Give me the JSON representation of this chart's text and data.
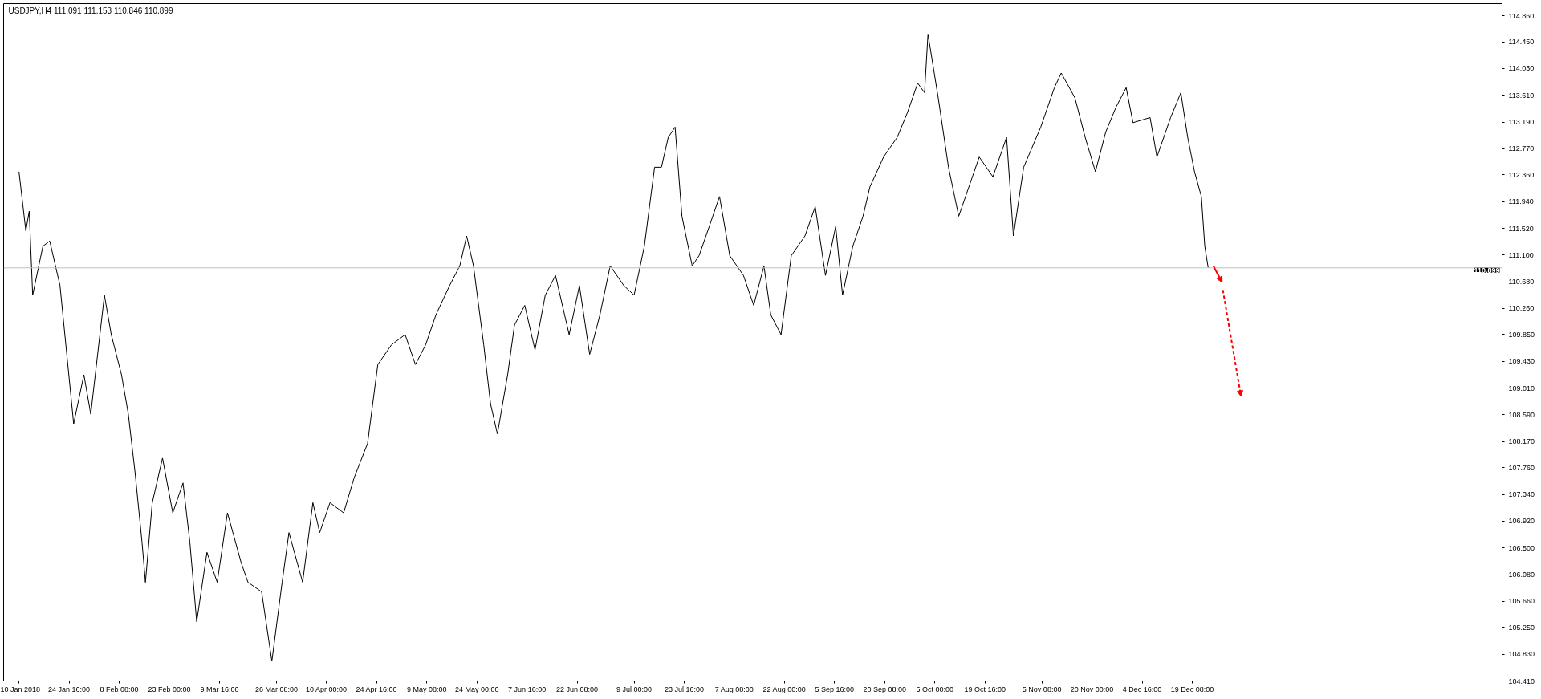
{
  "chart_data": {
    "type": "line",
    "title": "USDJPY,H4  111.091 111.153 110.846 110.899",
    "x": [
      "2018-01-10",
      "2018-01-12",
      "2018-01-13",
      "2018-01-14",
      "2018-01-17",
      "2018-01-19",
      "2018-01-22",
      "2018-01-26",
      "2018-01-29",
      "2018-01-31",
      "2018-02-04",
      "2018-02-06",
      "2018-02-09",
      "2018-02-11",
      "2018-02-13",
      "2018-02-15",
      "2018-02-16",
      "2018-02-18",
      "2018-02-21",
      "2018-02-24",
      "2018-02-27",
      "2018-03-01",
      "2018-03-03",
      "2018-03-06",
      "2018-03-09",
      "2018-03-12",
      "2018-03-16",
      "2018-03-18",
      "2018-03-22",
      "2018-03-25",
      "2018-03-28",
      "2018-03-30",
      "2018-04-03",
      "2018-04-06",
      "2018-04-08",
      "2018-04-11",
      "2018-04-15",
      "2018-04-18",
      "2018-04-22",
      "2018-04-25",
      "2018-04-29",
      "2018-05-03",
      "2018-05-06",
      "2018-05-09",
      "2018-05-12",
      "2018-05-16",
      "2018-05-19",
      "2018-05-21",
      "2018-05-23",
      "2018-05-26",
      "2018-05-28",
      "2018-05-30",
      "2018-06-02",
      "2018-06-04",
      "2018-06-07",
      "2018-06-10",
      "2018-06-13",
      "2018-06-16",
      "2018-06-20",
      "2018-06-23",
      "2018-06-26",
      "2018-06-29",
      "2018-07-02",
      "2018-07-06",
      "2018-07-09",
      "2018-07-12",
      "2018-07-15",
      "2018-07-17",
      "2018-07-19",
      "2018-07-21",
      "2018-07-23",
      "2018-07-26",
      "2018-07-28",
      "2018-07-31",
      "2018-08-03",
      "2018-08-06",
      "2018-08-10",
      "2018-08-13",
      "2018-08-16",
      "2018-08-18",
      "2018-08-21",
      "2018-08-24",
      "2018-08-28",
      "2018-08-31",
      "2018-09-03",
      "2018-09-06",
      "2018-09-08",
      "2018-09-11",
      "2018-09-14",
      "2018-09-16",
      "2018-09-20",
      "2018-09-24",
      "2018-09-27",
      "2018-09-30",
      "2018-10-02",
      "2018-10-03",
      "2018-10-06",
      "2018-10-09",
      "2018-10-12",
      "2018-10-14",
      "2018-10-18",
      "2018-10-22",
      "2018-10-26",
      "2018-10-28",
      "2018-10-31",
      "2018-11-05",
      "2018-11-09",
      "2018-11-11",
      "2018-11-15",
      "2018-11-18",
      "2018-11-21",
      "2018-11-24",
      "2018-11-27",
      "2018-11-30",
      "2018-12-02",
      "2018-12-07",
      "2018-12-09",
      "2018-12-13",
      "2018-12-16",
      "2018-12-18",
      "2018-12-20",
      "2018-12-22",
      "2018-12-23",
      "2018-12-24"
    ],
    "series": [
      {
        "color": "#000000",
        "values": [
          112.41,
          111.48,
          111.79,
          110.47,
          111.24,
          111.32,
          110.62,
          108.45,
          109.22,
          108.6,
          110.47,
          109.85,
          109.22,
          108.6,
          107.67,
          106.59,
          105.96,
          107.21,
          107.91,
          107.05,
          107.52,
          106.59,
          105.34,
          106.43,
          105.96,
          107.05,
          106.27,
          105.96,
          105.81,
          104.72,
          105.96,
          106.74,
          105.96,
          107.21,
          106.74,
          107.21,
          107.05,
          107.59,
          108.14,
          109.38,
          109.69,
          109.85,
          109.38,
          109.69,
          110.16,
          110.62,
          110.93,
          111.4,
          110.93,
          109.69,
          108.76,
          108.29,
          109.22,
          110.0,
          110.31,
          109.61,
          110.47,
          110.78,
          109.85,
          110.62,
          109.54,
          110.16,
          110.93,
          110.62,
          110.47,
          111.24,
          112.48,
          112.48,
          112.95,
          113.11,
          111.71,
          110.93,
          111.09,
          111.55,
          112.02,
          111.09,
          110.78,
          110.31,
          110.93,
          110.16,
          109.85,
          111.09,
          111.4,
          111.86,
          110.78,
          111.55,
          110.47,
          111.24,
          111.71,
          112.17,
          112.64,
          112.95,
          113.34,
          113.8,
          113.65,
          114.57,
          113.57,
          112.48,
          111.71,
          112.02,
          112.64,
          112.33,
          112.95,
          111.4,
          112.48,
          113.11,
          113.73,
          113.96,
          113.57,
          112.95,
          112.41,
          113.03,
          113.42,
          113.73,
          113.18,
          113.26,
          112.64,
          113.26,
          113.65,
          112.95,
          112.41,
          112.02,
          111.24,
          110.9
        ]
      }
    ],
    "xlim": [
      "2018-01-05T12:00",
      "2019-03-20"
    ],
    "xticks": [
      {
        "value": "2018-01-10T00:00",
        "label": "10 Jan 2018"
      },
      {
        "value": "2018-01-24T16:00",
        "label": "24 Jan 16:00"
      },
      {
        "value": "2018-02-08T08:00",
        "label": "8 Feb 08:00"
      },
      {
        "value": "2018-02-23T00:00",
        "label": "23 Feb 00:00"
      },
      {
        "value": "2018-03-09T16:00",
        "label": "9 Mar 16:00"
      },
      {
        "value": "2018-03-26T08:00",
        "label": "26 Mar 08:00"
      },
      {
        "value": "2018-04-10T00:00",
        "label": "10 Apr 00:00"
      },
      {
        "value": "2018-04-24T16:00",
        "label": "24 Apr 16:00"
      },
      {
        "value": "2018-05-09T08:00",
        "label": "9 May 08:00"
      },
      {
        "value": "2018-05-24T00:00",
        "label": "24 May 00:00"
      },
      {
        "value": "2018-06-07T16:00",
        "label": "7 Jun 16:00"
      },
      {
        "value": "2018-06-22T08:00",
        "label": "22 Jun 08:00"
      },
      {
        "value": "2018-07-09T00:00",
        "label": "9 Jul 00:00"
      },
      {
        "value": "2018-07-23T16:00",
        "label": "23 Jul 16:00"
      },
      {
        "value": "2018-08-07T08:00",
        "label": "7 Aug 08:00"
      },
      {
        "value": "2018-08-22T00:00",
        "label": "22 Aug 00:00"
      },
      {
        "value": "2018-09-05T16:00",
        "label": "5 Sep 16:00"
      },
      {
        "value": "2018-09-20T08:00",
        "label": "20 Sep 08:00"
      },
      {
        "value": "2018-10-05T00:00",
        "label": "5 Oct 00:00"
      },
      {
        "value": "2018-10-19T16:00",
        "label": "19 Oct 16:00"
      },
      {
        "value": "2018-11-05T08:00",
        "label": "5 Nov 08:00"
      },
      {
        "value": "2018-11-20T00:00",
        "label": "20 Nov 00:00"
      },
      {
        "value": "2018-12-04T16:00",
        "label": "4 Dec 16:00"
      },
      {
        "value": "2018-12-19T08:00",
        "label": "19 Dec 08:00"
      }
    ],
    "ylim": [
      104.41,
      115.05
    ],
    "yticks": [
      {
        "value": 104.41,
        "label": "104.410"
      },
      {
        "value": 104.83,
        "label": "104.830"
      },
      {
        "value": 105.25,
        "label": "105.250"
      },
      {
        "value": 105.66,
        "label": "105.660"
      },
      {
        "value": 106.08,
        "label": "106.080"
      },
      {
        "value": 106.5,
        "label": "106.500"
      },
      {
        "value": 106.92,
        "label": "106.920"
      },
      {
        "value": 107.34,
        "label": "107.340"
      },
      {
        "value": 107.76,
        "label": "107.760"
      },
      {
        "value": 108.17,
        "label": "108.170"
      },
      {
        "value": 108.59,
        "label": "108.590"
      },
      {
        "value": 109.01,
        "label": "109.010"
      },
      {
        "value": 109.43,
        "label": "109.430"
      },
      {
        "value": 109.85,
        "label": "109.850"
      },
      {
        "value": 110.26,
        "label": "110.260"
      },
      {
        "value": 110.68,
        "label": "110.680"
      },
      {
        "value": 111.1,
        "label": "111.100"
      },
      {
        "value": 111.52,
        "label": "111.520"
      },
      {
        "value": 111.94,
        "label": "111.940"
      },
      {
        "value": 112.36,
        "label": "112.360"
      },
      {
        "value": 112.77,
        "label": "112.770"
      },
      {
        "value": 113.19,
        "label": "113.190"
      },
      {
        "value": 113.61,
        "label": "113.610"
      },
      {
        "value": 114.03,
        "label": "114.030"
      },
      {
        "value": 114.45,
        "label": "114.450"
      },
      {
        "value": 114.86,
        "label": "114.860"
      }
    ],
    "ref_lines": [
      {
        "axis": "y",
        "value": 110.899,
        "label": "110.899",
        "color": "#c0c0c0"
      }
    ],
    "grid": false
  }
}
